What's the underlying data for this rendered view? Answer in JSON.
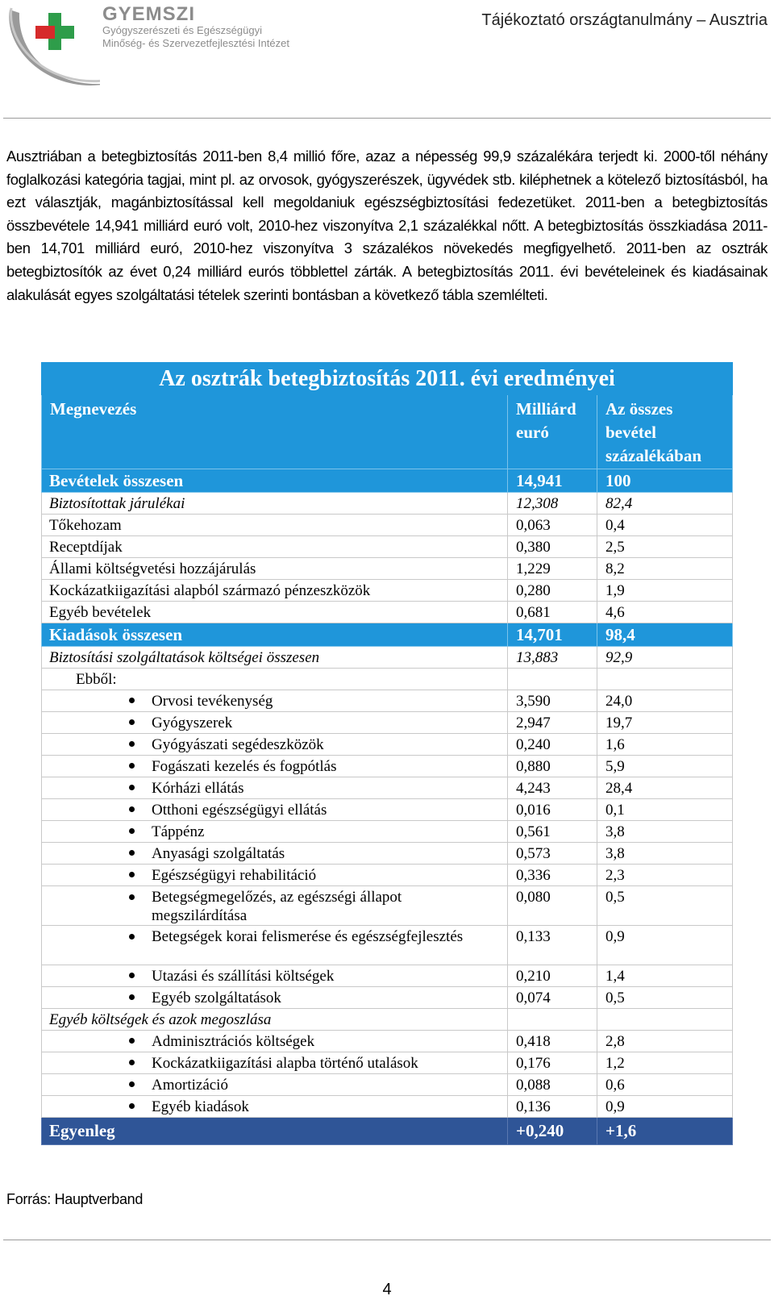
{
  "header": {
    "org_name": "GYEMSZI",
    "org_line1": "Gyógyszerészeti és Egészségügyi",
    "org_line2": "Minőség- és Szervezetfejlesztési Intézet",
    "doc_title": "Tájékoztató országtanulmány – Ausztria"
  },
  "intro": "Ausztriában a betegbiztosítás 2011-ben 8,4 millió főre, azaz a népesség 99,9 százalékára terjedt ki. 2000-től néhány foglalkozási kategória tagjai, mint pl. az orvosok, gyógyszerészek, ügyvédek stb. kiléphetnek a kötelező biztosításból, ha ezt választják, magánbiztosítással kell megoldaniuk egészségbiztosítási fedezetüket. 2011-ben a betegbiztosítás összbevétele 14,941 milliárd euró volt, 2010-hez viszonyítva 2,1 százalékkal nőtt. A betegbiztosítás összkiadása 2011-ben 14,701 milliárd euró, 2010-hez viszonyítva 3 százalékos növekedés megfigyelhető. 2011-ben az osztrák betegbiztosítók az évet 0,24 milliárd eurós többlettel zárták. A betegbiztosítás 2011. évi bevételeinek és kiadásainak alakulását egyes szolgáltatási tételek szerinti bontásban a következő tábla szemlélteti.",
  "table": {
    "title": "Az osztrák betegbiztosítás 2011. évi eredményei",
    "columns": [
      "Megnevezés",
      "Milliárd euró",
      "Az összes bevétel százalékában"
    ],
    "rows": [
      {
        "label": "Bevételek összesen",
        "value": "14,941",
        "share": "100"
      },
      {
        "label": "Biztosítottak járulékai",
        "value": "12,308",
        "share": "82,4"
      },
      {
        "label": "Tőkehozam",
        "value": "0,063",
        "share": "0,4"
      },
      {
        "label": "Receptdíjak",
        "value": "0,380",
        "share": "2,5"
      },
      {
        "label": "Állami költségvetési hozzájárulás",
        "value": "1,229",
        "share": "8,2"
      },
      {
        "label": "Kockázatkiigazítási alapból származó pénzeszközök",
        "value": "0,280",
        "share": "1,9"
      },
      {
        "label": "Egyéb bevételek",
        "value": "0,681",
        "share": "4,6"
      },
      {
        "label": "Kiadások összesen",
        "value": "14,701",
        "share": "98,4"
      },
      {
        "label": "Biztosítási szolgáltatások költségei összesen",
        "value": "13,883",
        "share": "92,9"
      },
      {
        "label": "Ebből:"
      },
      {
        "label": "Orvosi tevékenység",
        "value": "3,590",
        "share": "24,0"
      },
      {
        "label": "Gyógyszerek",
        "value": "2,947",
        "share": "19,7"
      },
      {
        "label": "Gyógyászati segédeszközök",
        "value": "0,240",
        "share": "1,6"
      },
      {
        "label": "Fogászati kezelés és fogpótlás",
        "value": "0,880",
        "share": "5,9"
      },
      {
        "label": "Kórházi ellátás",
        "value": "4,243",
        "share": "28,4"
      },
      {
        "label": "Otthoni egészségügyi ellátás",
        "value": "0,016",
        "share": "0,1"
      },
      {
        "label": "Táppénz",
        "value": "0,561",
        "share": "3,8"
      },
      {
        "label": "Anyasági szolgáltatás",
        "value": "0,573",
        "share": "3,8"
      },
      {
        "label": "Egészségügyi rehabilitáció",
        "value": "0,336",
        "share": "2,3"
      },
      {
        "label": "Betegségmegelőzés, az egészségi állapot megszilárdítása",
        "value": "0,080",
        "share": "0,5"
      },
      {
        "label": "Betegségek korai felismerése és egészségfejlesztés",
        "value": "0,133",
        "share": "0,9"
      },
      {
        "label": "Utazási és szállítási költségek",
        "value": "0,210",
        "share": "1,4"
      },
      {
        "label": "Egyéb szolgáltatások",
        "value": "0,074",
        "share": "0,5"
      },
      {
        "label": "Egyéb költségek és azok megoszlása"
      },
      {
        "label": "Adminisztrációs költségek",
        "value": "0,418",
        "share": "2,8"
      },
      {
        "label": "Kockázatkiigazítási alapba történő utalások",
        "value": "0,176",
        "share": "1,2"
      },
      {
        "label": "Amortizáció",
        "value": "0,088",
        "share": "0,6"
      },
      {
        "label": "Egyéb kiadások",
        "value": "0,136",
        "share": "0,9"
      },
      {
        "label": "Egyenleg",
        "value": "+0,240",
        "share": "+1,6"
      }
    ]
  },
  "source": "Forrás: Hauptverband",
  "page_number": "4"
}
